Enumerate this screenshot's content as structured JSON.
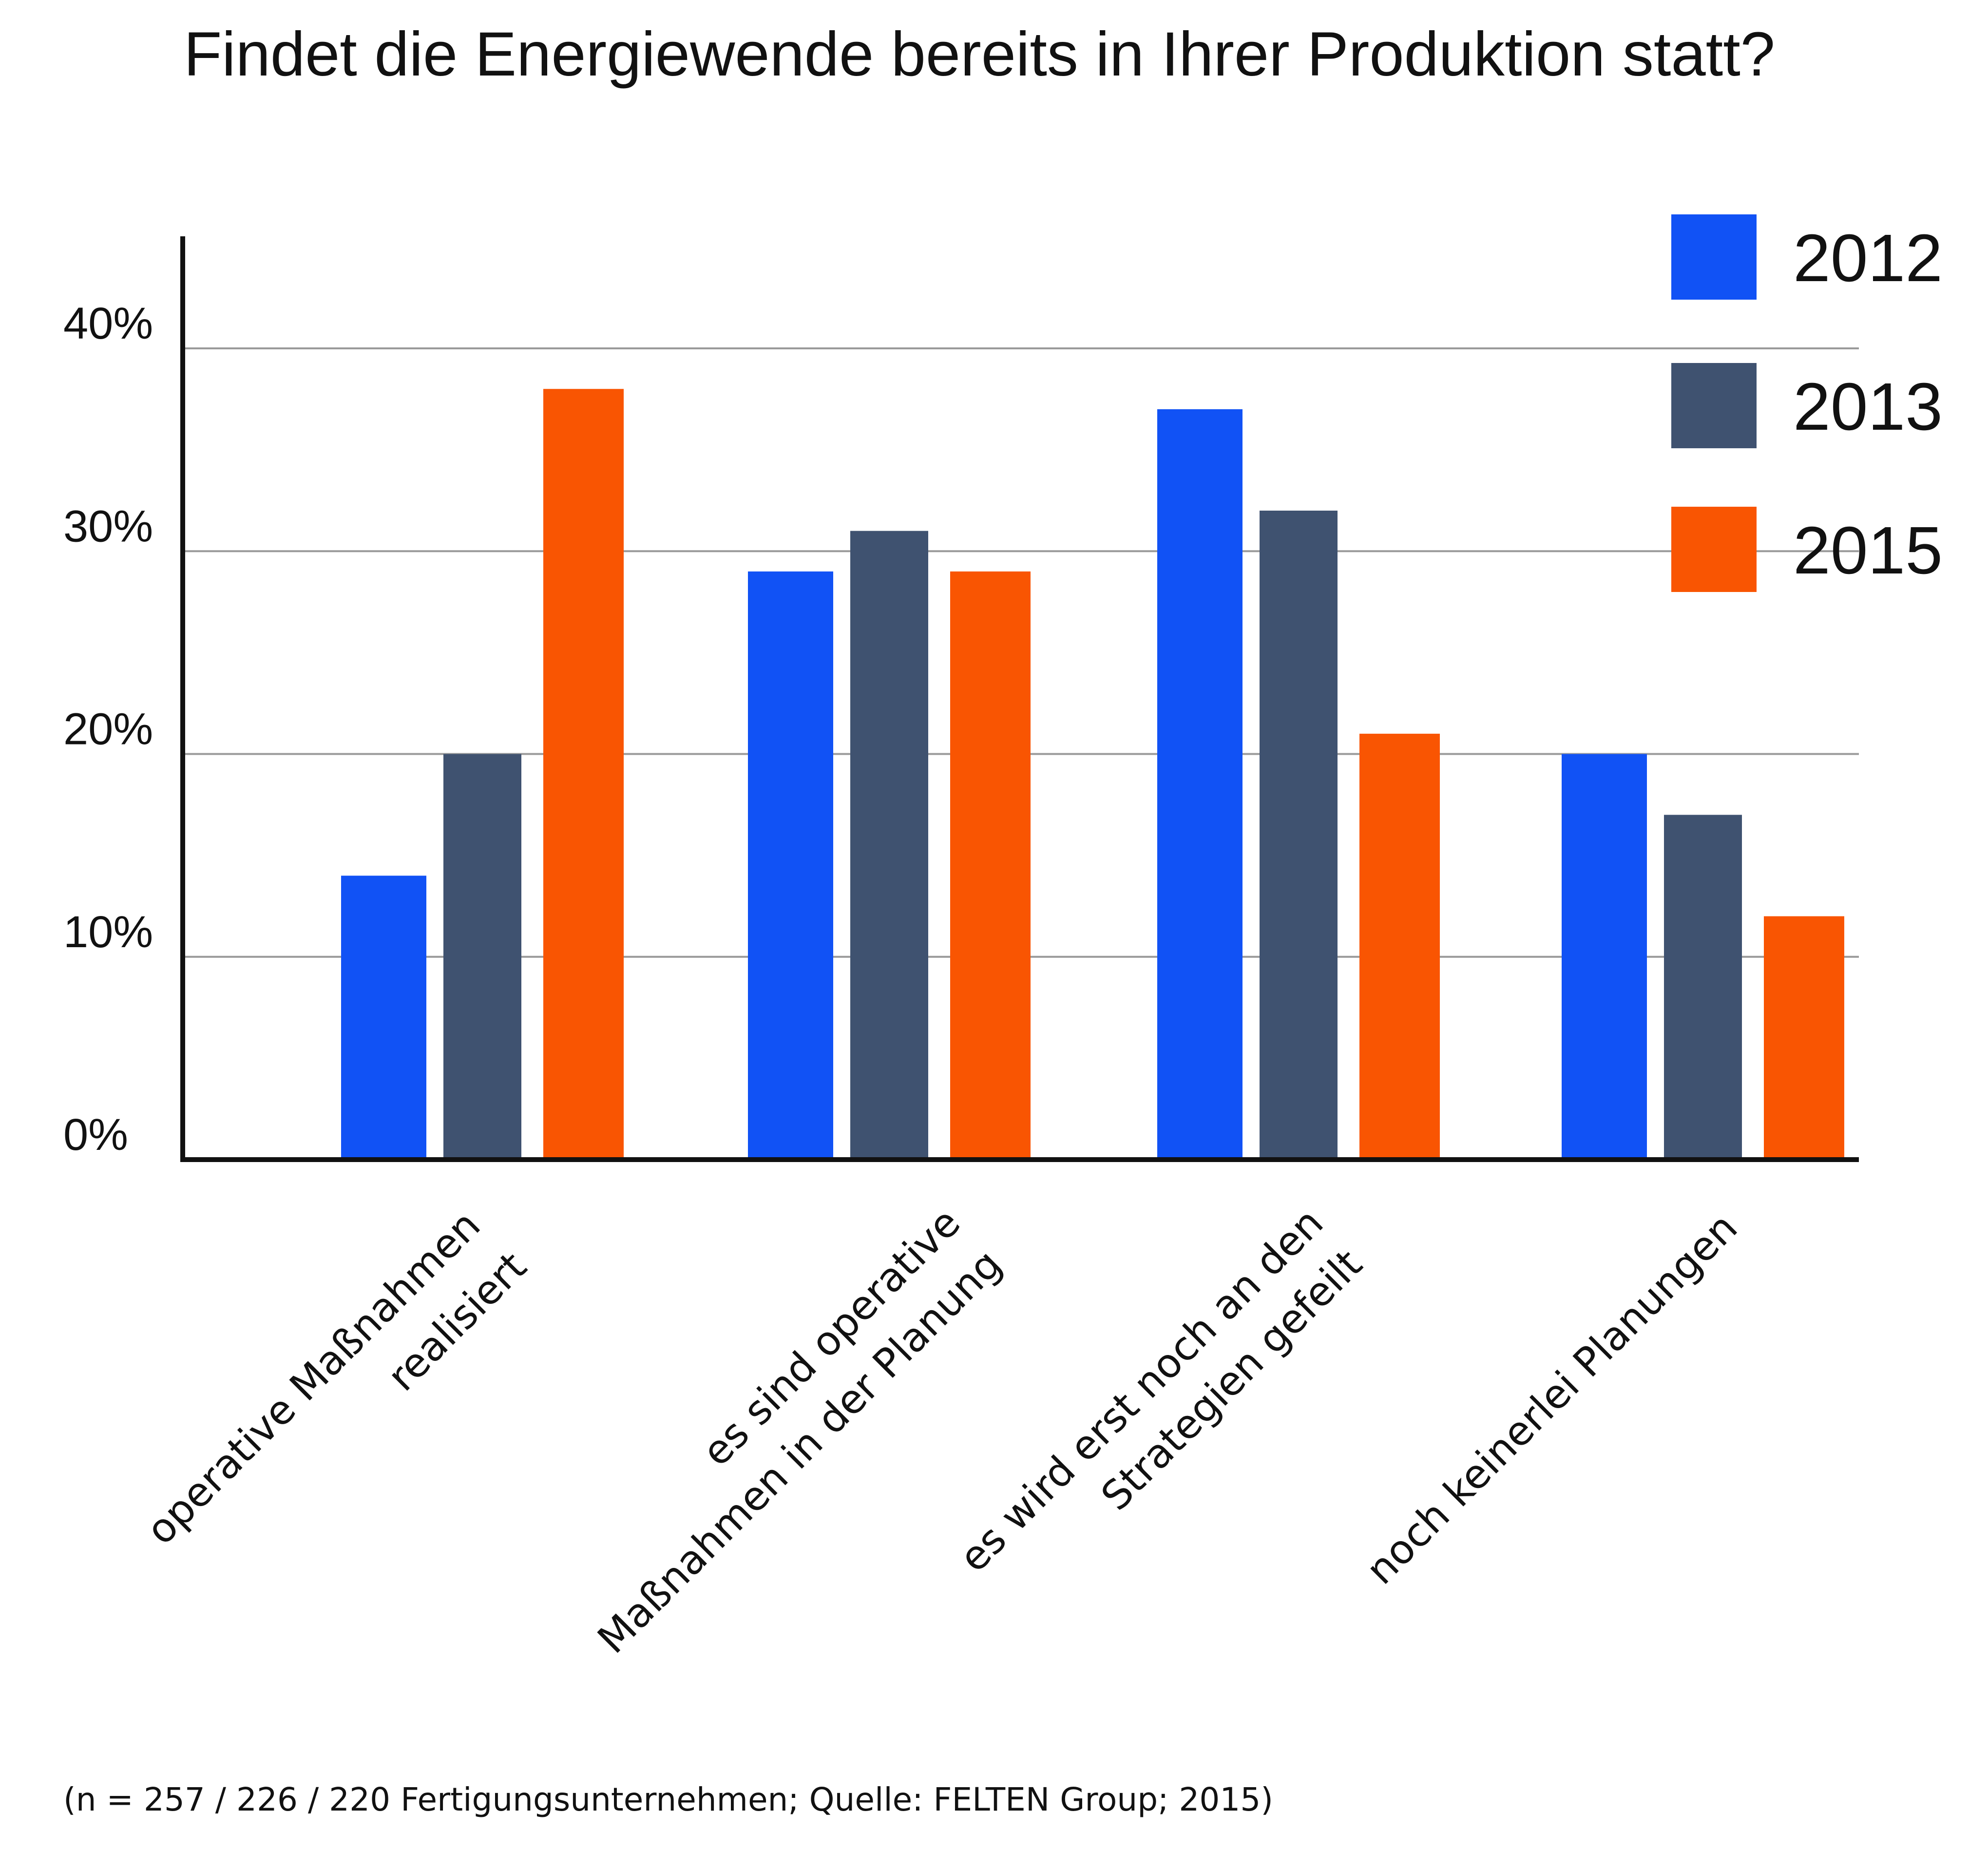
{
  "colors": {
    "2012": "#1152f5",
    "2013": "#3f5270",
    "2015": "#f95502",
    "grid": "#9a9a9a",
    "axis": "#111111"
  },
  "chart_data": {
    "type": "bar",
    "title": "Findet die Energiewende bereits in Ihrer Produktion statt?",
    "categories": [
      [
        "operative Maßnahmen",
        "realisiert"
      ],
      [
        "es sind operative",
        "Maßnahmen in der Planung"
      ],
      [
        "es wird erst noch an den",
        "Strategien gefeilt"
      ],
      [
        "noch keinerlei Planungen"
      ]
    ],
    "series": [
      {
        "name": "2012",
        "values": [
          14,
          29,
          37,
          20
        ]
      },
      {
        "name": "2013",
        "values": [
          20,
          31,
          32,
          17
        ]
      },
      {
        "name": "2015",
        "values": [
          38,
          29,
          21,
          12
        ]
      }
    ],
    "y_ticks": [
      "0%",
      "10%",
      "20%",
      "30%",
      "40%"
    ],
    "y_tick_values": [
      0,
      10,
      20,
      30,
      40
    ],
    "ylim": [
      0,
      45.5
    ],
    "grid": true,
    "legend": "top-right",
    "xlabel": "",
    "ylabel": "",
    "footnote": "(n = 257 / 226 / 220 Fertigungsunternehmen; Quelle: FELTEN Group; 2015)"
  }
}
